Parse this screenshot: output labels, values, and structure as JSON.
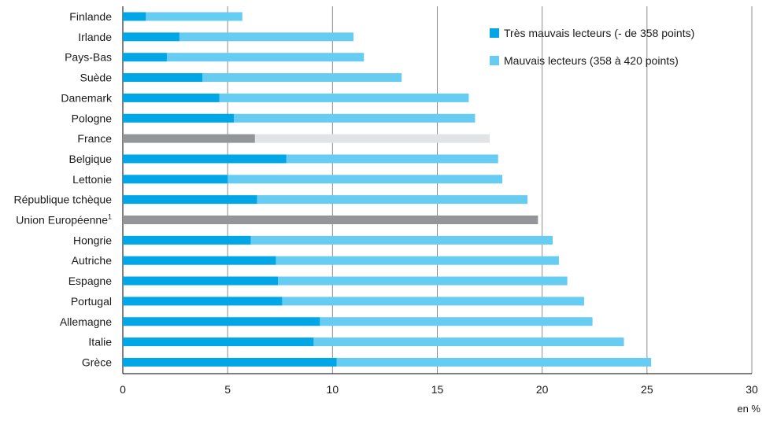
{
  "chart_data": {
    "type": "bar",
    "orientation": "horizontal",
    "stacked": true,
    "categories": [
      "Finlande",
      "Irlande",
      "Pays-Bas",
      "Suède",
      "Danemark",
      "Pologne",
      "France",
      "Belgique",
      "Lettonie",
      "République tchèque",
      "Union Européenne",
      "Hongrie",
      "Autriche",
      "Espagne",
      "Portugal",
      "Allemagne",
      "Italie",
      "Grèce"
    ],
    "category_superscripts": [
      "",
      "",
      "",
      "",
      "",
      "",
      "",
      "",
      "",
      "",
      "1",
      "",
      "",
      "",
      "",
      "",
      "",
      ""
    ],
    "series": [
      {
        "name": "Très mauvais lecteurs (- de 358 points)",
        "color": "#00a6e6",
        "values": [
          1.1,
          2.7,
          2.1,
          3.8,
          4.6,
          5.3,
          6.3,
          7.8,
          5.0,
          6.4,
          null,
          6.1,
          7.3,
          7.4,
          7.6,
          9.4,
          9.1,
          10.2
        ]
      },
      {
        "name": "Mauvais lecteurs (358 à 420 points)",
        "color": "#66ccf2",
        "values": [
          4.6,
          8.3,
          9.4,
          9.5,
          11.9,
          11.5,
          11.2,
          10.1,
          13.1,
          12.9,
          null,
          14.4,
          13.5,
          13.8,
          14.4,
          13.0,
          14.8,
          15.0
        ]
      }
    ],
    "highlight": {
      "France": {
        "dark": "#939598",
        "light": "#e2e3e4"
      },
      "Union Européenne": {
        "total": 19.8,
        "color": "#939598"
      }
    },
    "xlim": [
      0,
      30
    ],
    "xticks": [
      0,
      5,
      10,
      15,
      20,
      25,
      30
    ],
    "xlabel": "en %",
    "grid": true,
    "legend_position": "top-right"
  }
}
